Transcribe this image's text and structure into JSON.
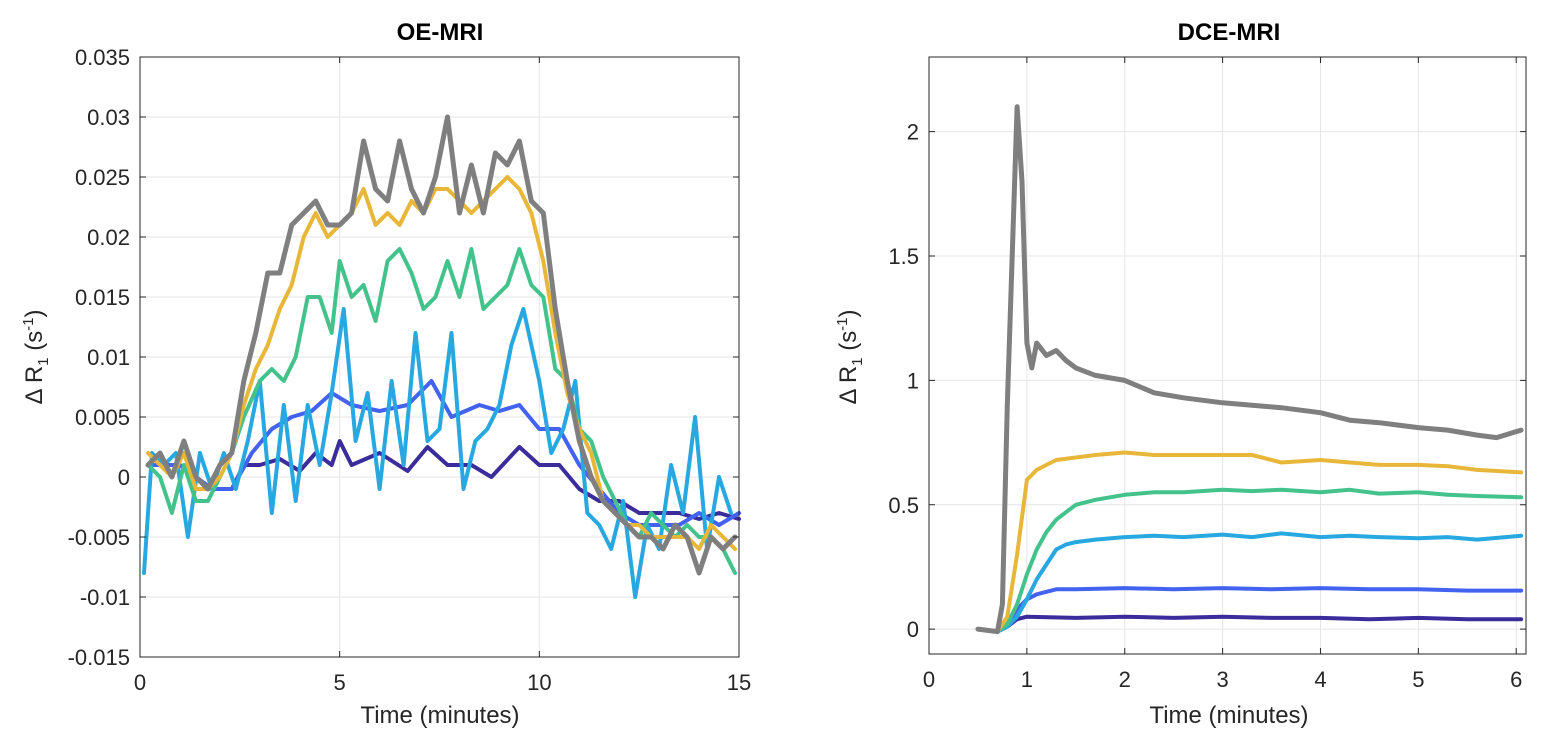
{
  "chart_data": [
    {
      "type": "line",
      "title": "OE-MRI",
      "xlabel": "Time (minutes)",
      "ylabel": "Δ R1 (s-1)",
      "ylabel_parts": {
        "prefix": "Δ R",
        "sub": "1",
        "mid": " (s",
        "sup": "-1",
        "suffix": ")"
      },
      "xlim": [
        0,
        15
      ],
      "ylim": [
        -0.015,
        0.035
      ],
      "xticks": [
        0,
        5,
        10,
        15
      ],
      "xtick_labels": [
        "0",
        "5",
        "10",
        "15"
      ],
      "yticks": [
        -0.015,
        -0.01,
        -0.005,
        0,
        0.005,
        0.01,
        0.015,
        0.02,
        0.025,
        0.03,
        0.035
      ],
      "ytick_labels": [
        "-0.015",
        "-0.01",
        "-0.005",
        "0",
        "0.005",
        "0.01",
        "0.015",
        "0.02",
        "0.025",
        "0.03",
        "0.035"
      ],
      "grid": true,
      "series": [
        {
          "name": "series-navy",
          "color": "#3b2c9c",
          "x": [
            0.2,
            1,
            1.8,
            2.3,
            2.6,
            3,
            3.5,
            4,
            4.4,
            4.8,
            5,
            5.3,
            6,
            6.7,
            7.2,
            7.7,
            8.3,
            8.8,
            9.5,
            10,
            10.5,
            11,
            11.5,
            12,
            12.5,
            13,
            13.5,
            14,
            14.5,
            15
          ],
          "y": [
            0.001,
            0.001,
            -0.001,
            -0.001,
            0.001,
            0.001,
            0.0015,
            0.0005,
            0.002,
            0.001,
            0.003,
            0.001,
            0.002,
            0.0005,
            0.0025,
            0.001,
            0.001,
            0,
            0.0025,
            0.001,
            0.001,
            -0.001,
            -0.002,
            -0.002,
            -0.003,
            -0.003,
            -0.003,
            -0.0035,
            -0.003,
            -0.0035
          ]
        },
        {
          "name": "series-blue",
          "color": "#4462f0",
          "x": [
            0.2,
            1,
            1.8,
            2.3,
            2.8,
            3.3,
            3.8,
            4.3,
            4.8,
            5.3,
            6,
            6.7,
            7.3,
            7.8,
            8.5,
            9,
            9.5,
            10,
            10.5,
            11,
            11.5,
            12,
            12.5,
            13,
            13.5,
            14,
            14.5,
            15
          ],
          "y": [
            0.001,
            0.001,
            -0.001,
            -0.001,
            0.002,
            0.004,
            0.005,
            0.0055,
            0.007,
            0.006,
            0.0055,
            0.006,
            0.008,
            0.005,
            0.006,
            0.0055,
            0.006,
            0.004,
            0.004,
            0.001,
            -0.001,
            -0.003,
            -0.004,
            -0.004,
            -0.004,
            -0.003,
            -0.004,
            -0.003
          ]
        },
        {
          "name": "series-cyan",
          "color": "#27a8e0",
          "x": [
            0.1,
            0.3,
            0.6,
            0.9,
            1.2,
            1.5,
            1.8,
            2.1,
            2.4,
            2.7,
            3,
            3.3,
            3.6,
            3.9,
            4.2,
            4.5,
            4.8,
            5.1,
            5.4,
            5.7,
            6,
            6.3,
            6.6,
            6.9,
            7.2,
            7.5,
            7.8,
            8.1,
            8.4,
            8.7,
            9,
            9.3,
            9.6,
            10,
            10.3,
            10.6,
            10.9,
            11.2,
            11.5,
            11.8,
            12.1,
            12.4,
            12.7,
            13,
            13.3,
            13.6,
            13.9,
            14.2,
            14.5,
            14.8
          ],
          "y": [
            -0.008,
            0.002,
            0.001,
            0.002,
            -0.005,
            0.002,
            -0.001,
            0.002,
            -0.001,
            0.003,
            0.008,
            -0.003,
            0.006,
            -0.002,
            0.006,
            0.001,
            0.007,
            0.014,
            0.003,
            0.007,
            -0.001,
            0.008,
            0.001,
            0.012,
            0.003,
            0.004,
            0.012,
            -0.001,
            0.003,
            0.004,
            0.006,
            0.011,
            0.014,
            0.008,
            0.002,
            0.004,
            0.008,
            -0.003,
            -0.004,
            -0.006,
            -0.002,
            -0.01,
            -0.004,
            -0.006,
            0.001,
            -0.003,
            0.005,
            -0.006,
            0,
            -0.003
          ]
        },
        {
          "name": "series-green",
          "color": "#43c38b",
          "x": [
            0.2,
            0.5,
            0.8,
            1.1,
            1.4,
            1.7,
            2,
            2.3,
            2.6,
            3,
            3.3,
            3.6,
            3.9,
            4.2,
            4.5,
            4.8,
            5,
            5.3,
            5.6,
            5.9,
            6.2,
            6.5,
            6.8,
            7.1,
            7.4,
            7.7,
            8,
            8.3,
            8.6,
            8.9,
            9.2,
            9.5,
            9.8,
            10.1,
            10.4,
            10.7,
            11,
            11.3,
            11.6,
            11.9,
            12.2,
            12.5,
            12.8,
            13.1,
            13.4,
            13.7,
            14,
            14.3,
            14.6,
            14.9
          ],
          "y": [
            0.001,
            0,
            -0.003,
            0.001,
            -0.002,
            -0.002,
            0,
            0.002,
            0.005,
            0.008,
            0.009,
            0.008,
            0.01,
            0.015,
            0.015,
            0.012,
            0.018,
            0.015,
            0.016,
            0.013,
            0.018,
            0.019,
            0.017,
            0.014,
            0.015,
            0.018,
            0.015,
            0.019,
            0.014,
            0.015,
            0.016,
            0.019,
            0.016,
            0.015,
            0.009,
            0.008,
            0.004,
            0.003,
            0,
            -0.002,
            -0.004,
            -0.005,
            -0.003,
            -0.004,
            -0.005,
            -0.004,
            -0.005,
            -0.005,
            -0.006,
            -0.008
          ]
        },
        {
          "name": "series-yellow",
          "color": "#e8b73a",
          "x": [
            0.2,
            0.5,
            0.8,
            1.1,
            1.4,
            1.7,
            2,
            2.3,
            2.6,
            2.9,
            3.2,
            3.5,
            3.8,
            4.1,
            4.4,
            4.7,
            5,
            5.3,
            5.6,
            5.9,
            6.2,
            6.5,
            6.8,
            7.1,
            7.4,
            7.7,
            8,
            8.3,
            8.6,
            8.9,
            9.2,
            9.5,
            9.8,
            10.1,
            10.4,
            10.7,
            11,
            11.3,
            11.6,
            11.9,
            12.2,
            12.5,
            12.8,
            13.1,
            13.4,
            13.7,
            14,
            14.3,
            14.6,
            14.9
          ],
          "y": [
            0.002,
            0.001,
            0,
            0.002,
            -0.001,
            -0.001,
            0,
            0.002,
            0.006,
            0.009,
            0.011,
            0.014,
            0.016,
            0.02,
            0.022,
            0.02,
            0.021,
            0.022,
            0.024,
            0.021,
            0.022,
            0.021,
            0.023,
            0.022,
            0.024,
            0.024,
            0.023,
            0.022,
            0.023,
            0.024,
            0.025,
            0.024,
            0.022,
            0.018,
            0.012,
            0.007,
            0.004,
            0.002,
            -0.002,
            -0.003,
            -0.004,
            -0.004,
            -0.005,
            -0.005,
            -0.005,
            -0.005,
            -0.006,
            -0.004,
            -0.005,
            -0.006
          ]
        },
        {
          "name": "series-gray",
          "color": "#7f7f7f",
          "x": [
            0.2,
            0.5,
            0.8,
            1.1,
            1.4,
            1.7,
            2,
            2.3,
            2.6,
            2.9,
            3.2,
            3.5,
            3.8,
            4.1,
            4.4,
            4.7,
            5,
            5.3,
            5.6,
            5.9,
            6.2,
            6.5,
            6.8,
            7.1,
            7.4,
            7.7,
            8,
            8.3,
            8.6,
            8.9,
            9.2,
            9.5,
            9.8,
            10.1,
            10.4,
            10.7,
            11,
            11.3,
            11.6,
            11.9,
            12.2,
            12.5,
            12.8,
            13.1,
            13.4,
            13.7,
            14,
            14.3,
            14.6,
            14.9
          ],
          "y": [
            0.001,
            0.002,
            0,
            0.003,
            0,
            -0.001,
            0.001,
            0.002,
            0.008,
            0.012,
            0.017,
            0.017,
            0.021,
            0.022,
            0.023,
            0.021,
            0.021,
            0.022,
            0.028,
            0.024,
            0.023,
            0.028,
            0.024,
            0.022,
            0.025,
            0.03,
            0.022,
            0.026,
            0.022,
            0.027,
            0.026,
            0.028,
            0.023,
            0.022,
            0.014,
            0.008,
            0.003,
            0,
            -0.002,
            -0.003,
            -0.004,
            -0.005,
            -0.005,
            -0.006,
            -0.004,
            -0.005,
            -0.008,
            -0.005,
            -0.006,
            -0.005
          ]
        }
      ]
    },
    {
      "type": "line",
      "title": "DCE-MRI",
      "xlabel": "Time (minutes)",
      "ylabel": "Δ R1 (s-1)",
      "ylabel_parts": {
        "prefix": "Δ R",
        "sub": "1",
        "mid": " (s",
        "sup": "-1",
        "suffix": ")"
      },
      "xlim": [
        0,
        6.1
      ],
      "ylim": [
        -0.1,
        2.3
      ],
      "xticks": [
        0,
        1,
        2,
        3,
        4,
        5,
        6
      ],
      "xtick_labels": [
        "0",
        "1",
        "2",
        "3",
        "4",
        "5",
        "6"
      ],
      "yticks": [
        0,
        0.5,
        1,
        1.5,
        2
      ],
      "ytick_labels": [
        "0",
        "0.5",
        "1",
        "1.5",
        "2"
      ],
      "grid": true,
      "series": [
        {
          "name": "series-navy",
          "color": "#3b2c9c",
          "x": [
            0.5,
            0.7,
            0.8,
            0.9,
            1,
            1.5,
            2,
            2.5,
            3,
            3.5,
            4,
            4.5,
            5,
            5.5,
            6.05
          ],
          "y": [
            0,
            -0.01,
            0.01,
            0.04,
            0.05,
            0.045,
            0.05,
            0.045,
            0.05,
            0.045,
            0.045,
            0.04,
            0.045,
            0.04,
            0.04
          ]
        },
        {
          "name": "series-blue",
          "color": "#4462f0",
          "x": [
            0.5,
            0.7,
            0.8,
            0.9,
            1,
            1.1,
            1.2,
            1.3,
            1.5,
            2,
            2.5,
            3,
            3.5,
            4,
            4.5,
            5,
            5.5,
            6.05
          ],
          "y": [
            0,
            -0.01,
            0.02,
            0.08,
            0.12,
            0.14,
            0.15,
            0.16,
            0.16,
            0.165,
            0.16,
            0.165,
            0.16,
            0.165,
            0.16,
            0.16,
            0.155,
            0.155
          ]
        },
        {
          "name": "series-cyan",
          "color": "#27a8e0",
          "x": [
            0.5,
            0.7,
            0.8,
            0.9,
            1,
            1.1,
            1.2,
            1.3,
            1.4,
            1.5,
            1.7,
            2,
            2.3,
            2.6,
            3,
            3.3,
            3.6,
            4,
            4.3,
            4.6,
            5,
            5.3,
            5.6,
            6.05
          ],
          "y": [
            0,
            -0.01,
            0.01,
            0.05,
            0.12,
            0.2,
            0.26,
            0.32,
            0.34,
            0.35,
            0.36,
            0.37,
            0.375,
            0.37,
            0.38,
            0.37,
            0.385,
            0.37,
            0.375,
            0.37,
            0.365,
            0.37,
            0.36,
            0.375
          ]
        },
        {
          "name": "series-green",
          "color": "#43c38b",
          "x": [
            0.5,
            0.7,
            0.8,
            0.9,
            1,
            1.1,
            1.2,
            1.3,
            1.4,
            1.5,
            1.7,
            2,
            2.3,
            2.6,
            3,
            3.3,
            3.6,
            4,
            4.3,
            4.6,
            5,
            5.3,
            5.6,
            6.05
          ],
          "y": [
            0,
            -0.01,
            0.02,
            0.1,
            0.22,
            0.32,
            0.39,
            0.44,
            0.47,
            0.5,
            0.52,
            0.54,
            0.55,
            0.55,
            0.56,
            0.555,
            0.56,
            0.55,
            0.56,
            0.545,
            0.55,
            0.54,
            0.535,
            0.53
          ]
        },
        {
          "name": "series-yellow",
          "color": "#e8b73a",
          "x": [
            0.5,
            0.7,
            0.8,
            0.9,
            1,
            1.1,
            1.2,
            1.3,
            1.5,
            1.7,
            2,
            2.3,
            2.6,
            3,
            3.3,
            3.6,
            4,
            4.3,
            4.6,
            5,
            5.3,
            5.6,
            6.05
          ],
          "y": [
            0,
            -0.01,
            0.05,
            0.3,
            0.6,
            0.64,
            0.66,
            0.68,
            0.69,
            0.7,
            0.71,
            0.7,
            0.7,
            0.7,
            0.7,
            0.67,
            0.68,
            0.67,
            0.66,
            0.66,
            0.655,
            0.64,
            0.63
          ]
        },
        {
          "name": "series-gray",
          "color": "#7f7f7f",
          "x": [
            0.5,
            0.7,
            0.75,
            0.8,
            0.9,
            0.95,
            1,
            1.05,
            1.1,
            1.2,
            1.3,
            1.4,
            1.5,
            1.7,
            2,
            2.3,
            2.6,
            3,
            3.3,
            3.6,
            4,
            4.3,
            4.6,
            5,
            5.3,
            5.6,
            5.8,
            6.05
          ],
          "y": [
            0,
            -0.01,
            0.1,
            0.9,
            2.1,
            1.8,
            1.15,
            1.05,
            1.15,
            1.1,
            1.12,
            1.08,
            1.05,
            1.02,
            1.0,
            0.95,
            0.93,
            0.91,
            0.9,
            0.89,
            0.87,
            0.84,
            0.83,
            0.81,
            0.8,
            0.78,
            0.77,
            0.8
          ]
        }
      ]
    }
  ]
}
